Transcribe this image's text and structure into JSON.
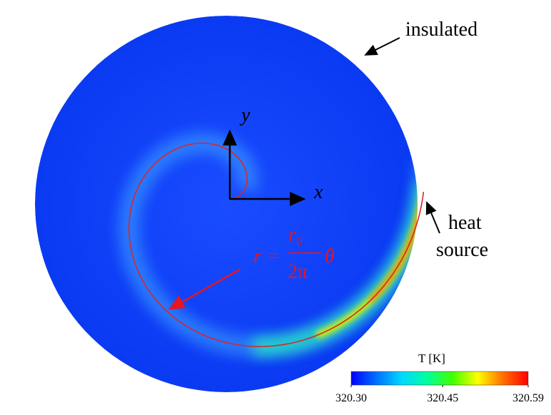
{
  "annotations": {
    "insulated": "insulated",
    "heat_source": [
      "heat",
      "source"
    ],
    "x_axis": "x",
    "y_axis": "y"
  },
  "formula": {
    "lhs": "r =",
    "numerator": "r₀",
    "denominator": "2π",
    "variable": "θ"
  },
  "colorbar": {
    "title": "T [K]",
    "lim": [
      320.3,
      320.59
    ],
    "ticks": [
      {
        "value": 320.3,
        "label": "320.30"
      },
      {
        "value": 320.45,
        "label": "320.45"
      },
      {
        "value": 320.59,
        "label": "320.59"
      }
    ],
    "colors": [
      "#0000ff",
      "#0070ff",
      "#00d8ff",
      "#00ffa0",
      "#40ff00",
      "#ffff00",
      "#ff7000",
      "#ff0000"
    ]
  }
}
